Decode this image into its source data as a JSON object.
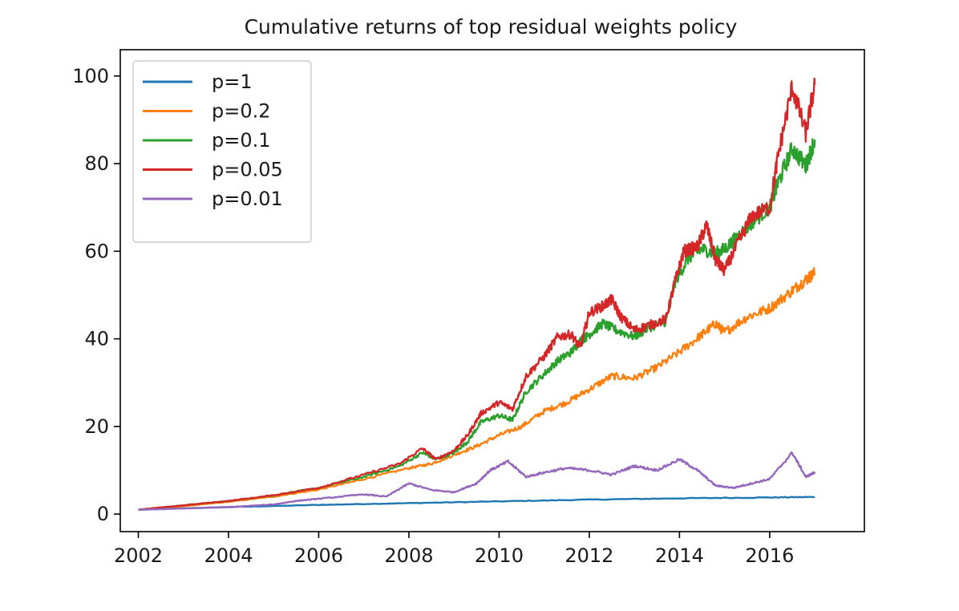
{
  "chart_data": {
    "type": "line",
    "title": "Cumulative returns of top residual weights policy",
    "xlabel": "",
    "ylabel": "",
    "xlim": [
      2001.6,
      2018.1
    ],
    "ylim": [
      -4,
      106
    ],
    "xticks": [
      2002,
      2004,
      2006,
      2008,
      2010,
      2012,
      2014,
      2016
    ],
    "yticks": [
      0,
      20,
      40,
      60,
      80,
      100
    ],
    "grid": false,
    "legend": {
      "position": "upper-left"
    },
    "series": [
      {
        "name": "p=1",
        "color": "#1f77b4",
        "points": [
          [
            2002.0,
            1.0
          ],
          [
            2004.0,
            1.6
          ],
          [
            2006.0,
            2.1
          ],
          [
            2008.0,
            2.5
          ],
          [
            2010.0,
            2.9
          ],
          [
            2012.0,
            3.3
          ],
          [
            2014.0,
            3.6
          ],
          [
            2016.0,
            3.8
          ],
          [
            2017.0,
            3.9
          ]
        ]
      },
      {
        "name": "p=0.2",
        "color": "#ff7f0e",
        "points": [
          [
            2002.0,
            1.0
          ],
          [
            2003.0,
            1.8
          ],
          [
            2004.0,
            2.8
          ],
          [
            2005.0,
            4.0
          ],
          [
            2006.0,
            5.6
          ],
          [
            2007.0,
            8.0
          ],
          [
            2008.0,
            10.5
          ],
          [
            2008.5,
            11.5
          ],
          [
            2009.0,
            13.5
          ],
          [
            2009.5,
            15.5
          ],
          [
            2010.0,
            18.0
          ],
          [
            2010.5,
            20.0
          ],
          [
            2011.0,
            23.5
          ],
          [
            2011.5,
            25.5
          ],
          [
            2012.0,
            28.5
          ],
          [
            2012.5,
            31.5
          ],
          [
            2013.0,
            31.0
          ],
          [
            2013.5,
            33.5
          ],
          [
            2014.0,
            37.0
          ],
          [
            2014.5,
            41.0
          ],
          [
            2014.8,
            43.5
          ],
          [
            2015.0,
            41.5
          ],
          [
            2015.5,
            45.0
          ],
          [
            2016.0,
            47.0
          ],
          [
            2016.5,
            51.0
          ],
          [
            2016.8,
            53.5
          ],
          [
            2017.0,
            55.0
          ]
        ]
      },
      {
        "name": "p=0.1",
        "color": "#2ca02c",
        "points": [
          [
            2002.0,
            1.0
          ],
          [
            2003.0,
            2.0
          ],
          [
            2004.0,
            3.0
          ],
          [
            2005.0,
            4.3
          ],
          [
            2006.0,
            6.0
          ],
          [
            2007.0,
            8.5
          ],
          [
            2007.8,
            11.0
          ],
          [
            2008.3,
            14.0
          ],
          [
            2008.6,
            12.5
          ],
          [
            2009.0,
            14.0
          ],
          [
            2009.3,
            16.5
          ],
          [
            2009.6,
            21.0
          ],
          [
            2010.0,
            22.5
          ],
          [
            2010.3,
            21.5
          ],
          [
            2010.6,
            28.0
          ],
          [
            2011.0,
            32.0
          ],
          [
            2011.3,
            35.0
          ],
          [
            2011.6,
            37.0
          ],
          [
            2011.8,
            39.5
          ],
          [
            2012.0,
            41.0
          ],
          [
            2012.3,
            43.5
          ],
          [
            2012.6,
            42.0
          ],
          [
            2013.0,
            40.5
          ],
          [
            2013.3,
            42.5
          ],
          [
            2013.7,
            44.0
          ],
          [
            2013.9,
            53.0
          ],
          [
            2014.2,
            58.5
          ],
          [
            2014.5,
            60.5
          ],
          [
            2014.8,
            59.5
          ],
          [
            2015.0,
            60.5
          ],
          [
            2015.3,
            63.5
          ],
          [
            2015.6,
            66.5
          ],
          [
            2016.0,
            70.0
          ],
          [
            2016.2,
            76.0
          ],
          [
            2016.5,
            83.5
          ],
          [
            2016.8,
            79.5
          ],
          [
            2017.0,
            85.5
          ]
        ]
      },
      {
        "name": "p=0.05",
        "color": "#d62728",
        "points": [
          [
            2002.0,
            1.0
          ],
          [
            2003.0,
            2.0
          ],
          [
            2004.0,
            3.0
          ],
          [
            2005.0,
            4.3
          ],
          [
            2006.0,
            6.0
          ],
          [
            2007.0,
            9.0
          ],
          [
            2007.8,
            11.5
          ],
          [
            2008.3,
            15.0
          ],
          [
            2008.6,
            12.5
          ],
          [
            2009.0,
            14.5
          ],
          [
            2009.3,
            18.0
          ],
          [
            2009.6,
            23.0
          ],
          [
            2010.0,
            25.5
          ],
          [
            2010.3,
            24.0
          ],
          [
            2010.6,
            31.5
          ],
          [
            2011.0,
            36.0
          ],
          [
            2011.3,
            40.5
          ],
          [
            2011.6,
            41.0
          ],
          [
            2011.8,
            38.0
          ],
          [
            2012.0,
            46.0
          ],
          [
            2012.3,
            47.5
          ],
          [
            2012.5,
            49.0
          ],
          [
            2012.7,
            45.0
          ],
          [
            2013.0,
            42.0
          ],
          [
            2013.3,
            43.0
          ],
          [
            2013.7,
            44.5
          ],
          [
            2013.9,
            53.0
          ],
          [
            2014.1,
            60.0
          ],
          [
            2014.4,
            61.0
          ],
          [
            2014.6,
            66.0
          ],
          [
            2014.8,
            58.0
          ],
          [
            2015.0,
            55.5
          ],
          [
            2015.3,
            62.0
          ],
          [
            2015.6,
            68.0
          ],
          [
            2016.0,
            70.0
          ],
          [
            2016.2,
            82.5
          ],
          [
            2016.5,
            97.5
          ],
          [
            2016.8,
            87.0
          ],
          [
            2017.0,
            98.0
          ]
        ]
      },
      {
        "name": "p=0.01",
        "color": "#9467bd",
        "points": [
          [
            2002.0,
            1.0
          ],
          [
            2003.0,
            1.3
          ],
          [
            2004.0,
            1.6
          ],
          [
            2005.0,
            2.2
          ],
          [
            2005.5,
            3.0
          ],
          [
            2006.0,
            3.5
          ],
          [
            2007.0,
            4.5
          ],
          [
            2007.5,
            4.0
          ],
          [
            2008.0,
            7.0
          ],
          [
            2008.5,
            5.5
          ],
          [
            2009.0,
            5.0
          ],
          [
            2009.5,
            7.0
          ],
          [
            2009.8,
            10.0
          ],
          [
            2010.2,
            12.0
          ],
          [
            2010.6,
            8.5
          ],
          [
            2011.0,
            9.5
          ],
          [
            2011.5,
            10.5
          ],
          [
            2012.0,
            10.0
          ],
          [
            2012.5,
            9.0
          ],
          [
            2013.0,
            11.0
          ],
          [
            2013.5,
            10.0
          ],
          [
            2014.0,
            12.5
          ],
          [
            2014.4,
            10.0
          ],
          [
            2014.8,
            6.5
          ],
          [
            2015.2,
            6.0
          ],
          [
            2015.6,
            7.0
          ],
          [
            2016.0,
            8.0
          ],
          [
            2016.5,
            14.0
          ],
          [
            2016.8,
            8.5
          ],
          [
            2017.0,
            9.5
          ]
        ]
      }
    ]
  }
}
